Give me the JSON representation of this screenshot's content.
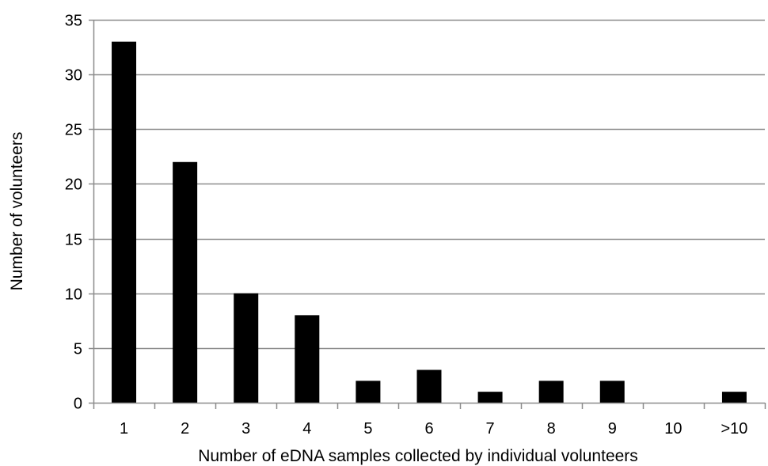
{
  "chart_data": {
    "type": "bar",
    "title": "",
    "xlabel": "Number of eDNA samples collected by individual volunteers",
    "ylabel": "Number of volunteers",
    "categories": [
      "1",
      "2",
      "3",
      "4",
      "5",
      "6",
      "7",
      "8",
      "9",
      "10",
      ">10"
    ],
    "values": [
      33,
      22,
      10,
      8,
      2,
      3,
      1,
      2,
      2,
      0,
      1
    ],
    "ylim": [
      0,
      35
    ],
    "yticks": [
      0,
      5,
      10,
      15,
      20,
      25,
      30,
      35
    ],
    "grid": true,
    "legend": "none",
    "bar_color": "#000000",
    "grid_color": "#8c8c8c",
    "axis_color": "#8c8c8c"
  }
}
